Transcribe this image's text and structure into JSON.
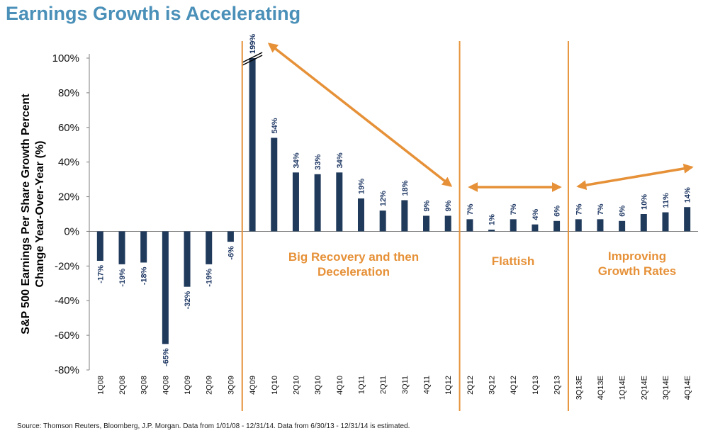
{
  "title": "Earnings Growth is Accelerating",
  "source": "Source: Thomson Reuters, Bloomberg, J.P. Morgan. Data from 1/01/08 - 12/31/14. Data from 6/30/13 - 12/31/14 is estimated.",
  "colors": {
    "bar": "#203a5c",
    "accent": "#e69138",
    "title": "#4a90b8"
  },
  "chart_data": {
    "type": "bar",
    "title": "Earnings Growth is Accelerating",
    "ylabel": [
      "S&P 500 Earnings Per Share Growth Percent",
      "Change Year-Over-Year (%)"
    ],
    "xlabel": "",
    "ylim": [
      -80,
      100
    ],
    "yticks": [
      "100%",
      "80%",
      "60%",
      "40%",
      "20%",
      "0%",
      "-20%",
      "-40%",
      "-60%",
      "-80%"
    ],
    "categories": [
      "1Q08",
      "2Q08",
      "3Q08",
      "4Q08",
      "1Q09",
      "2Q09",
      "3Q09",
      "4Q09",
      "1Q10",
      "2Q10",
      "3Q10",
      "4Q10",
      "1Q11",
      "2Q11",
      "3Q11",
      "4Q11",
      "1Q12",
      "2Q12",
      "3Q12",
      "4Q12",
      "1Q13",
      "2Q13",
      "3Q13E",
      "4Q13E",
      "1Q14E",
      "2Q14E",
      "3Q14E",
      "4Q14E"
    ],
    "values": [
      -17,
      -19,
      -18,
      -65,
      -32,
      -19,
      -6,
      199,
      54,
      34,
      33,
      34,
      19,
      12,
      18,
      9,
      9,
      7,
      1,
      7,
      4,
      6,
      7,
      7,
      6,
      10,
      11,
      14
    ],
    "labels": [
      "-17%",
      "-19%",
      "-18%",
      "-65%",
      "-32%",
      "-19%",
      "-6%",
      "199%",
      "54%",
      "34%",
      "33%",
      "34%",
      "19%",
      "12%",
      "18%",
      "9%",
      "9%",
      "7%",
      "1%",
      "7%",
      "4%",
      "6%",
      "7%",
      "7%",
      "6%",
      "10%",
      "11%",
      "14%"
    ],
    "axis_break": "4Q09",
    "grid": false,
    "legend": "none",
    "annotations": [
      {
        "lines": [
          "Big Recovery and then",
          "Deceleration"
        ]
      },
      {
        "lines": [
          "Flattish"
        ]
      },
      {
        "lines": [
          "Improving",
          "Growth Rates"
        ]
      }
    ]
  }
}
